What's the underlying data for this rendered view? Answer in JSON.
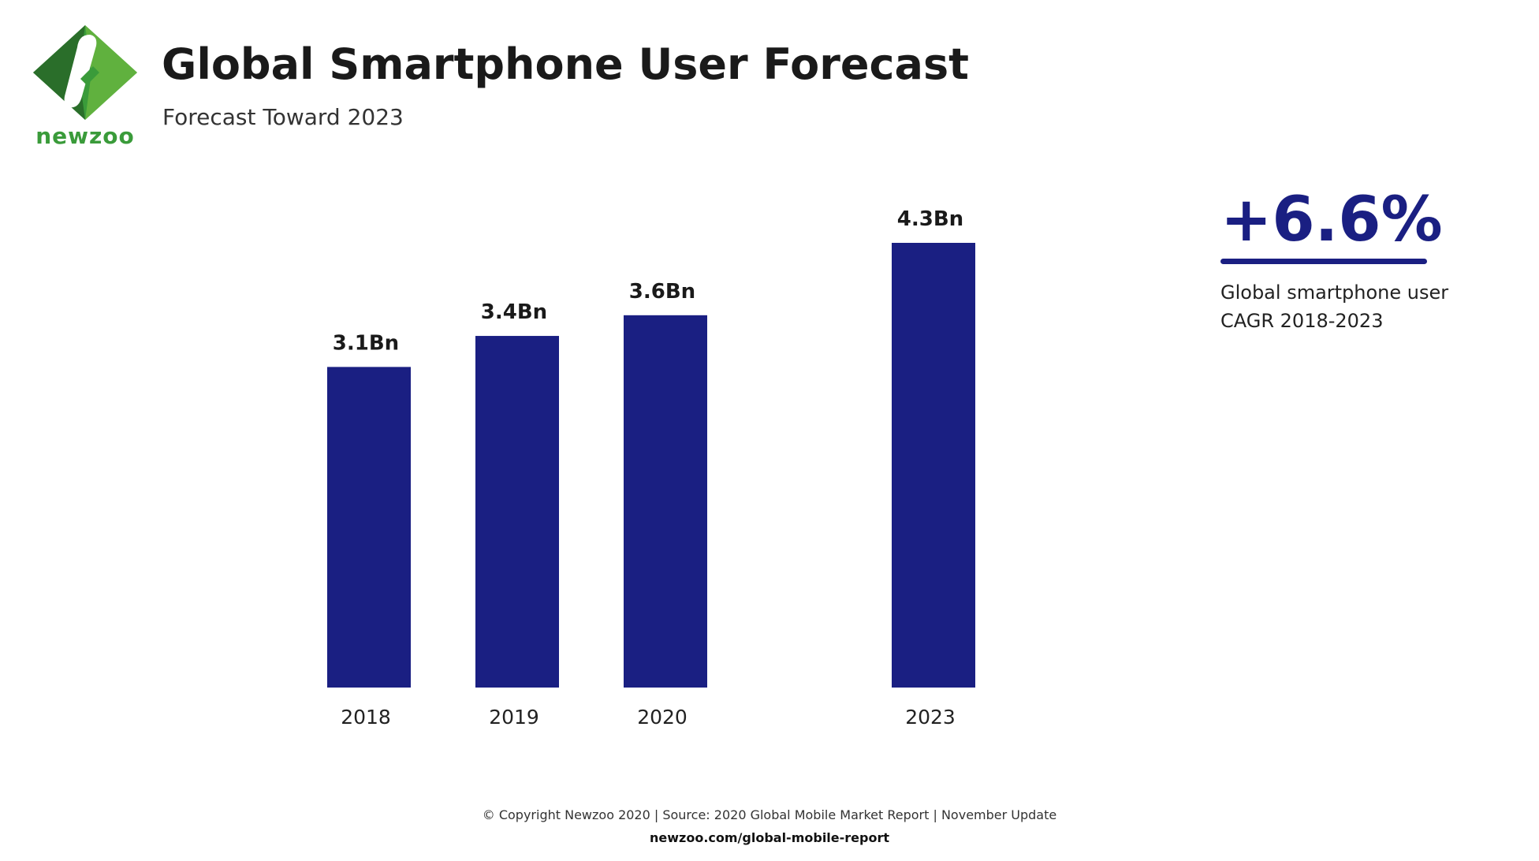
{
  "brand": {
    "name": "newzoo",
    "logo_icon": "newzoo-diamond-logo",
    "green": "#3a9b3a",
    "dark_green": "#2a6e2a",
    "light_green": "#7fc242"
  },
  "header": {
    "title": "Global Smartphone User Forecast",
    "subtitle": "Forecast Toward 2023"
  },
  "chart_data": {
    "type": "bar",
    "categories": [
      "2018",
      "2019",
      "2020",
      "2023"
    ],
    "values": [
      3.1,
      3.4,
      3.6,
      4.3
    ],
    "data_labels": [
      "3.1Bn",
      "3.4Bn",
      "3.6Bn",
      "4.3Bn"
    ],
    "unit": "Bn",
    "ylim": [
      0,
      4.3
    ],
    "grid": false,
    "axis_visible": false,
    "bar_color": "#1a1f82"
  },
  "kpi": {
    "value": "+6.6%",
    "description": "Global smartphone user CAGR 2018-2023",
    "color": "#1a1f82"
  },
  "footer": {
    "copyright": "© Copyright Newzoo 2020 | Source: 2020 Global Mobile Market Report | November Update",
    "url": "newzoo.com/global-mobile-report"
  }
}
